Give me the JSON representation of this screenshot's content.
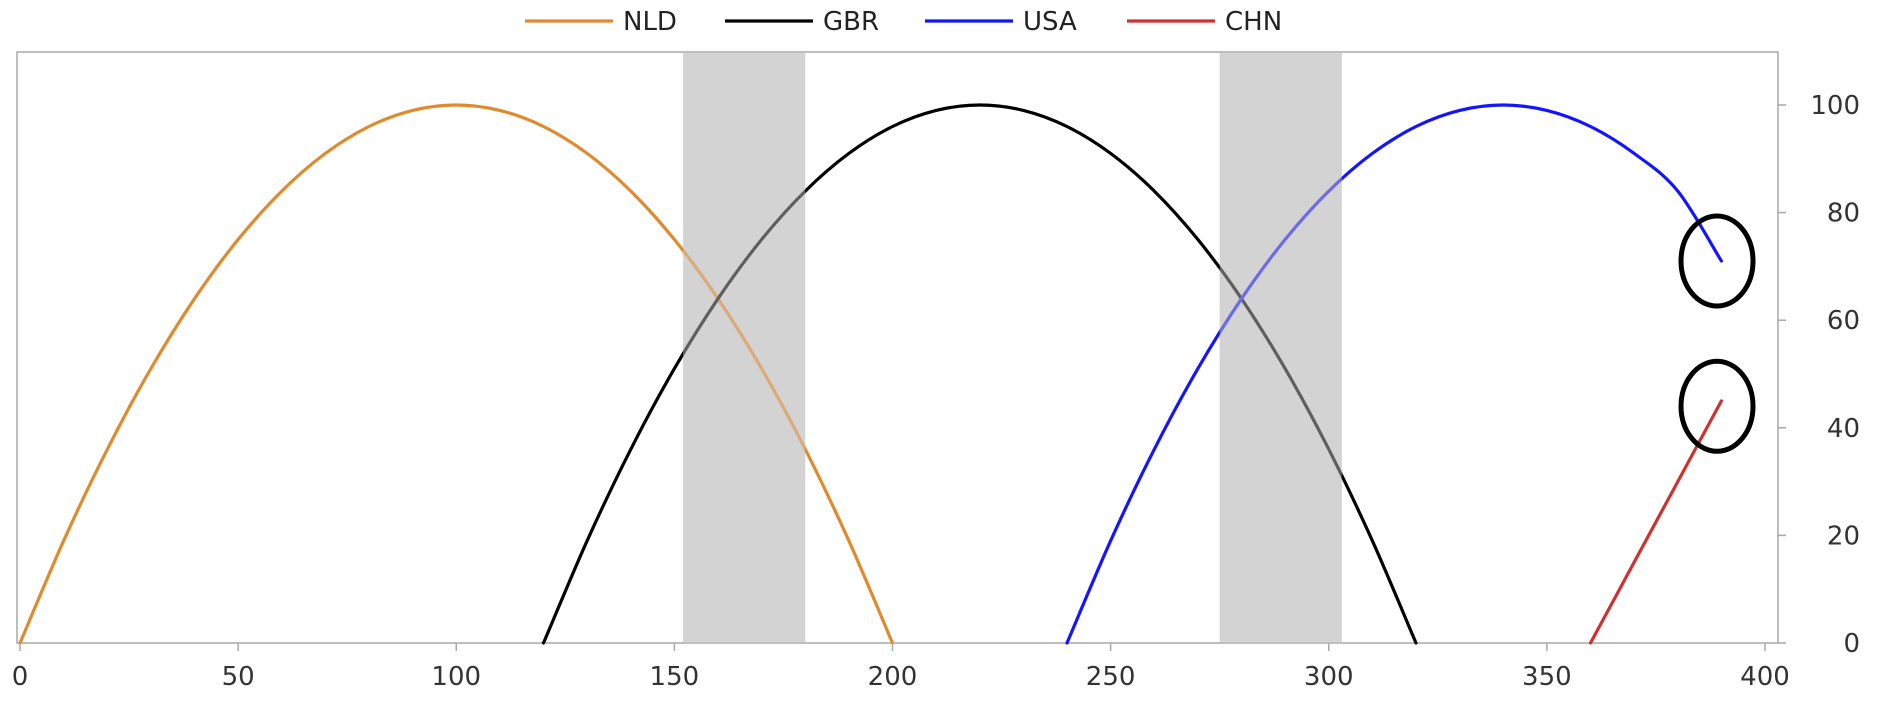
{
  "chart_data": {
    "type": "line",
    "title": "",
    "xlabel": "",
    "ylabel": "",
    "xlim": [
      0,
      400
    ],
    "ylim": [
      0,
      110
    ],
    "x_ticks": [
      "0",
      "50",
      "100",
      "150",
      "200",
      "250",
      "300",
      "350",
      "400"
    ],
    "y_ticks": [
      "0",
      "20",
      "40",
      "60",
      "80",
      "100"
    ],
    "y_axis_side": "right",
    "grid": false,
    "legend_position": "top-center",
    "shaded_bands": [
      {
        "x_start": 152,
        "x_end": 180,
        "color": "#d3d3d3"
      },
      {
        "x_start": 275,
        "x_end": 303,
        "color": "#d3d3d3"
      }
    ],
    "annotations": [
      {
        "type": "ellipse",
        "x": 389,
        "y": 71,
        "target_series": "USA"
      },
      {
        "type": "ellipse",
        "x": 389,
        "y": 44,
        "target_series": "CHN"
      }
    ],
    "series": [
      {
        "name": "NLD",
        "color": "#e08a2e",
        "x": [
          0,
          10,
          20,
          30,
          40,
          50,
          60,
          70,
          80,
          90,
          100,
          110,
          120,
          130,
          140,
          150,
          160,
          170,
          180,
          190,
          200
        ],
        "y": [
          0,
          19,
          36,
          51,
          64,
          75,
          84,
          91,
          96,
          99,
          100,
          99,
          96,
          91,
          84,
          75,
          64,
          51,
          36,
          19,
          0
        ]
      },
      {
        "name": "GBR",
        "color": "#000000",
        "x": [
          120,
          130,
          140,
          150,
          160,
          170,
          180,
          190,
          200,
          210,
          220,
          230,
          240,
          250,
          260,
          270,
          280,
          290,
          300,
          310,
          320
        ],
        "y": [
          0,
          19,
          36,
          51,
          64,
          75,
          84,
          91,
          96,
          99,
          100,
          99,
          96,
          91,
          84,
          75,
          64,
          51,
          36,
          19,
          0
        ]
      },
      {
        "name": "USA",
        "color": "#1414ff",
        "x": [
          240,
          250,
          260,
          270,
          280,
          290,
          300,
          310,
          320,
          330,
          340,
          350,
          360,
          370,
          380,
          390
        ],
        "y": [
          0,
          19,
          36,
          51,
          64,
          75,
          84,
          91,
          96,
          99,
          100,
          99,
          96,
          91,
          84,
          71
        ]
      },
      {
        "name": "CHN",
        "color": "#d03030",
        "x": [
          360,
          370,
          380,
          390
        ],
        "y": [
          0,
          15,
          30,
          45
        ]
      }
    ]
  }
}
